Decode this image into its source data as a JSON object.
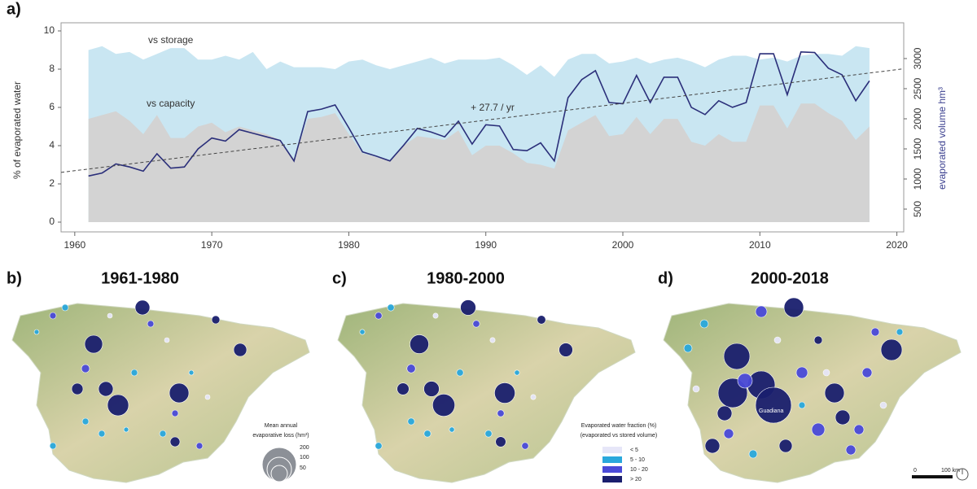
{
  "chart_data": {
    "type": "line",
    "panel_label": "a)",
    "x": [
      1961,
      1962,
      1963,
      1964,
      1965,
      1966,
      1967,
      1968,
      1969,
      1970,
      1971,
      1972,
      1973,
      1974,
      1975,
      1976,
      1977,
      1978,
      1979,
      1980,
      1981,
      1982,
      1983,
      1984,
      1985,
      1986,
      1987,
      1988,
      1989,
      1990,
      1991,
      1992,
      1993,
      1994,
      1995,
      1996,
      1997,
      1998,
      1999,
      2000,
      2001,
      2002,
      2003,
      2004,
      2005,
      2006,
      2007,
      2008,
      2009,
      2010,
      2011,
      2012,
      2013,
      2014,
      2015,
      2016,
      2017,
      2018
    ],
    "series": [
      {
        "name": "vs storage",
        "type": "area",
        "color": "#c9e6f2",
        "values": [
          9.0,
          9.2,
          8.8,
          8.9,
          8.5,
          8.8,
          9.1,
          9.1,
          8.5,
          8.5,
          8.7,
          8.5,
          8.9,
          8.0,
          8.4,
          8.1,
          8.1,
          8.1,
          8.0,
          8.4,
          8.5,
          8.2,
          8.0,
          8.2,
          8.4,
          8.6,
          8.3,
          8.5,
          8.5,
          8.5,
          8.6,
          8.2,
          7.7,
          8.2,
          7.6,
          8.5,
          8.8,
          8.8,
          8.3,
          8.4,
          8.6,
          8.3,
          8.5,
          8.6,
          8.4,
          8.1,
          8.5,
          8.7,
          8.7,
          8.5,
          8.6,
          8.4,
          8.7,
          8.8,
          8.8,
          8.7,
          9.2,
          9.1
        ]
      },
      {
        "name": "vs capacity",
        "type": "area",
        "color": "#d3d3d3",
        "values": [
          5.4,
          5.6,
          5.8,
          5.3,
          4.6,
          5.6,
          4.4,
          4.4,
          5.0,
          5.2,
          4.7,
          5.0,
          4.8,
          4.6,
          4.3,
          3.3,
          5.4,
          5.5,
          5.7,
          4.6,
          3.6,
          3.4,
          3.2,
          4.0,
          4.5,
          4.4,
          4.3,
          4.8,
          3.5,
          4.0,
          4.0,
          3.6,
          3.1,
          3.0,
          2.8,
          4.8,
          5.2,
          5.6,
          4.5,
          4.6,
          5.5,
          4.6,
          5.4,
          5.4,
          4.2,
          4.0,
          4.6,
          4.2,
          4.2,
          6.1,
          6.1,
          4.9,
          6.2,
          6.2,
          5.7,
          5.3,
          4.3,
          5.0
        ]
      },
      {
        "type": "line",
        "axis": "y2",
        "color": "#2b2f7a",
        "values": [
          1050,
          1100,
          1250,
          1200,
          1130,
          1420,
          1180,
          1200,
          1500,
          1680,
          1630,
          1820,
          1760,
          1700,
          1640,
          1300,
          2120,
          2160,
          2230,
          1850,
          1450,
          1380,
          1300,
          1560,
          1840,
          1780,
          1700,
          1960,
          1580,
          1900,
          1880,
          1490,
          1470,
          1600,
          1300,
          2350,
          2650,
          2800,
          2270,
          2250,
          2720,
          2270,
          2690,
          2690,
          2190,
          2070,
          2300,
          2190,
          2270,
          3080,
          3080,
          2400,
          3110,
          3100,
          2840,
          2730,
          2300,
          2630
        ]
      }
    ],
    "trend": {
      "x": [
        1959,
        2020.5
      ],
      "values": [
        1110,
        2830
      ],
      "label": "+ 27.7 / yr"
    },
    "ylabel": "% of evaporated water",
    "y2label": "evaporated volume hm³",
    "xlim": [
      1959,
      2020.5
    ],
    "xticks": [
      1960,
      1970,
      1980,
      1990,
      2000,
      2010,
      2020
    ],
    "ylim": [
      0,
      10
    ],
    "yticks": [
      0,
      2,
      4,
      6,
      8,
      10
    ],
    "y2lim": [
      284,
      3459
    ],
    "y2ticks": [
      500,
      1000,
      1500,
      2000,
      2500,
      3000
    ]
  },
  "maps": {
    "panels": [
      {
        "label": "b)",
        "title": "1961-1980"
      },
      {
        "label": "c)",
        "title": "1980-2000"
      },
      {
        "label": "d)",
        "title": "2000-2018"
      }
    ],
    "size_legend": {
      "title": [
        "Mean annual",
        "evaporative loss (hm³)"
      ],
      "sizes": [
        200,
        100,
        50
      ]
    },
    "color_legend": {
      "title": [
        "Evaporated water fraction (%)",
        "(evaporated vs stored volume)"
      ],
      "classes": [
        "< 5",
        "5 - 10",
        "10 - 20",
        "> 20"
      ]
    },
    "scale": [
      "0",
      "100 km"
    ],
    "place_label": "Guadiana"
  }
}
